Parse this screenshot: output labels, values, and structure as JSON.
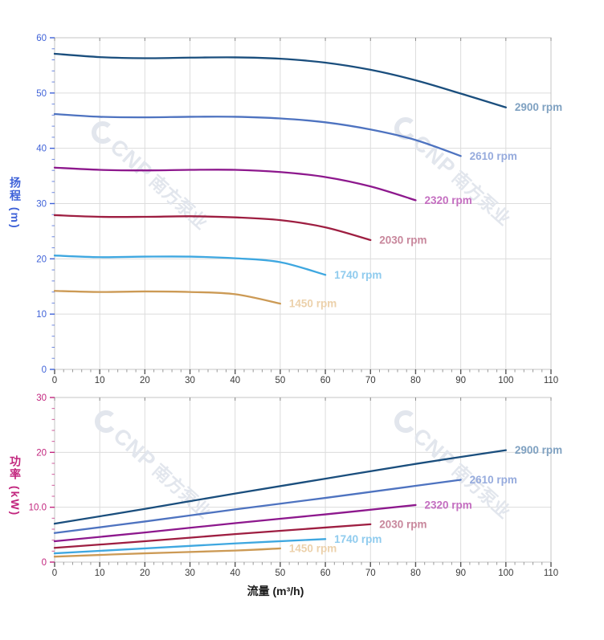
{
  "watermark": {
    "brand": "CNP",
    "brand_cn": "南方泵业",
    "color": "#e2e6ed"
  },
  "chart_data": [
    {
      "type": "line",
      "name": "head-vs-flow",
      "title": "",
      "xlabel": "",
      "ylabel": "扬程 (m)",
      "xlim": [
        0,
        110
      ],
      "ylim": [
        0,
        60
      ],
      "grid": true,
      "legend_position": "end-of-line-labels",
      "axis_label_color": "#3f62d8",
      "x_tick_color": "#3a3a3a",
      "x_ticks": [
        0,
        10,
        20,
        30,
        40,
        50,
        60,
        70,
        80,
        90,
        100,
        110
      ],
      "x_tick_labels": [
        "0",
        "10",
        "20",
        "30",
        "40",
        "50",
        "60",
        "70",
        "80",
        "90",
        "100",
        "110"
      ],
      "x_minor_step": 2,
      "y_ticks": [
        0,
        10,
        20,
        30,
        40,
        50,
        60
      ],
      "y_tick_labels": [
        "0",
        "10",
        "20",
        "30",
        "40",
        "50",
        "60"
      ],
      "y_minor_step": 2,
      "series": [
        {
          "name": "2900 rpm",
          "color": "#1a4e7d",
          "label_color": "#7fa1c1",
          "points": [
            [
              0,
              57.1
            ],
            [
              10,
              56.5
            ],
            [
              20,
              56.3
            ],
            [
              30,
              56.4
            ],
            [
              40,
              56.45
            ],
            [
              50,
              56.2
            ],
            [
              60,
              55.5
            ],
            [
              70,
              54.2
            ],
            [
              80,
              52.3
            ],
            [
              90,
              49.9
            ],
            [
              100,
              47.4
            ]
          ]
        },
        {
          "name": "2610 rpm",
          "color": "#4e73c0",
          "label_color": "#96abdd",
          "points": [
            [
              0,
              46.2
            ],
            [
              10,
              45.7
            ],
            [
              20,
              45.6
            ],
            [
              30,
              45.7
            ],
            [
              40,
              45.7
            ],
            [
              50,
              45.4
            ],
            [
              60,
              44.7
            ],
            [
              70,
              43.4
            ],
            [
              80,
              41.5
            ],
            [
              90,
              38.6
            ]
          ]
        },
        {
          "name": "2320 rpm",
          "color": "#8d188d",
          "label_color": "#c46ec0",
          "points": [
            [
              0,
              36.5
            ],
            [
              10,
              36.1
            ],
            [
              20,
              36.0
            ],
            [
              30,
              36.1
            ],
            [
              40,
              36.1
            ],
            [
              50,
              35.7
            ],
            [
              60,
              34.8
            ],
            [
              70,
              33.1
            ],
            [
              80,
              30.6
            ]
          ]
        },
        {
          "name": "2030 rpm",
          "color": "#9e1e41",
          "label_color": "#c8879c",
          "points": [
            [
              0,
              27.9
            ],
            [
              10,
              27.6
            ],
            [
              20,
              27.6
            ],
            [
              30,
              27.7
            ],
            [
              40,
              27.5
            ],
            [
              50,
              27.0
            ],
            [
              60,
              25.7
            ],
            [
              70,
              23.4
            ]
          ]
        },
        {
          "name": "1740 rpm",
          "color": "#3ea7e0",
          "label_color": "#8fcbee",
          "points": [
            [
              0,
              20.6
            ],
            [
              10,
              20.3
            ],
            [
              20,
              20.4
            ],
            [
              30,
              20.4
            ],
            [
              40,
              20.1
            ],
            [
              50,
              19.4
            ],
            [
              60,
              17.1
            ]
          ]
        },
        {
          "name": "1450 rpm",
          "color": "#cc9a55",
          "label_color": "#ecd1ab",
          "points": [
            [
              0,
              14.2
            ],
            [
              10,
              14.0
            ],
            [
              20,
              14.1
            ],
            [
              30,
              14.0
            ],
            [
              40,
              13.6
            ],
            [
              50,
              11.9
            ]
          ]
        }
      ]
    },
    {
      "type": "line",
      "name": "power-vs-flow",
      "title": "",
      "xlabel": "流量 (m³/h)",
      "ylabel": "功率 (kW)",
      "xlim": [
        0,
        110
      ],
      "ylim": [
        0,
        30
      ],
      "grid": true,
      "legend_position": "end-of-line-labels",
      "axis_label_color": "#c2267e",
      "x_tick_color": "#3a3a3a",
      "x_ticks": [
        0,
        10,
        20,
        30,
        40,
        50,
        60,
        70,
        80,
        90,
        100,
        110
      ],
      "x_tick_labels": [
        "0",
        "10",
        "20",
        "30",
        "40",
        "50",
        "60",
        "70",
        "80",
        "90",
        "100",
        "110"
      ],
      "x_minor_step": 2,
      "y_ticks": [
        0,
        10,
        20,
        30
      ],
      "y_tick_labels": [
        "0",
        "10.0",
        "20",
        "30"
      ],
      "y_minor_step": 2,
      "series": [
        {
          "name": "2900 rpm",
          "color": "#1a4e7d",
          "label_color": "#7fa1c1",
          "points": [
            [
              0,
              7.0
            ],
            [
              20,
              9.7
            ],
            [
              40,
              12.5
            ],
            [
              60,
              15.2
            ],
            [
              80,
              17.9
            ],
            [
              100,
              20.4
            ]
          ]
        },
        {
          "name": "2610 rpm",
          "color": "#4e73c0",
          "label_color": "#96abdd",
          "points": [
            [
              0,
              5.3
            ],
            [
              20,
              7.4
            ],
            [
              40,
              9.6
            ],
            [
              60,
              11.7
            ],
            [
              80,
              13.9
            ],
            [
              90,
              15.0
            ]
          ]
        },
        {
          "name": "2320 rpm",
          "color": "#8d188d",
          "label_color": "#c46ec0",
          "points": [
            [
              0,
              3.8
            ],
            [
              20,
              5.4
            ],
            [
              40,
              7.1
            ],
            [
              60,
              8.7
            ],
            [
              80,
              10.4
            ]
          ]
        },
        {
          "name": "2030 rpm",
          "color": "#9e1e41",
          "label_color": "#c8879c",
          "points": [
            [
              0,
              2.6
            ],
            [
              20,
              3.8
            ],
            [
              40,
              5.1
            ],
            [
              60,
              6.3
            ],
            [
              70,
              6.9
            ]
          ]
        },
        {
          "name": "1740 rpm",
          "color": "#3ea7e0",
          "label_color": "#8fcbee",
          "points": [
            [
              0,
              1.6
            ],
            [
              20,
              2.5
            ],
            [
              40,
              3.4
            ],
            [
              60,
              4.2
            ]
          ]
        },
        {
          "name": "1450 rpm",
          "color": "#cc9a55",
          "label_color": "#ecd1ab",
          "points": [
            [
              0,
              1.0
            ],
            [
              20,
              1.6
            ],
            [
              40,
              2.1
            ],
            [
              50,
              2.5
            ]
          ]
        }
      ]
    }
  ]
}
